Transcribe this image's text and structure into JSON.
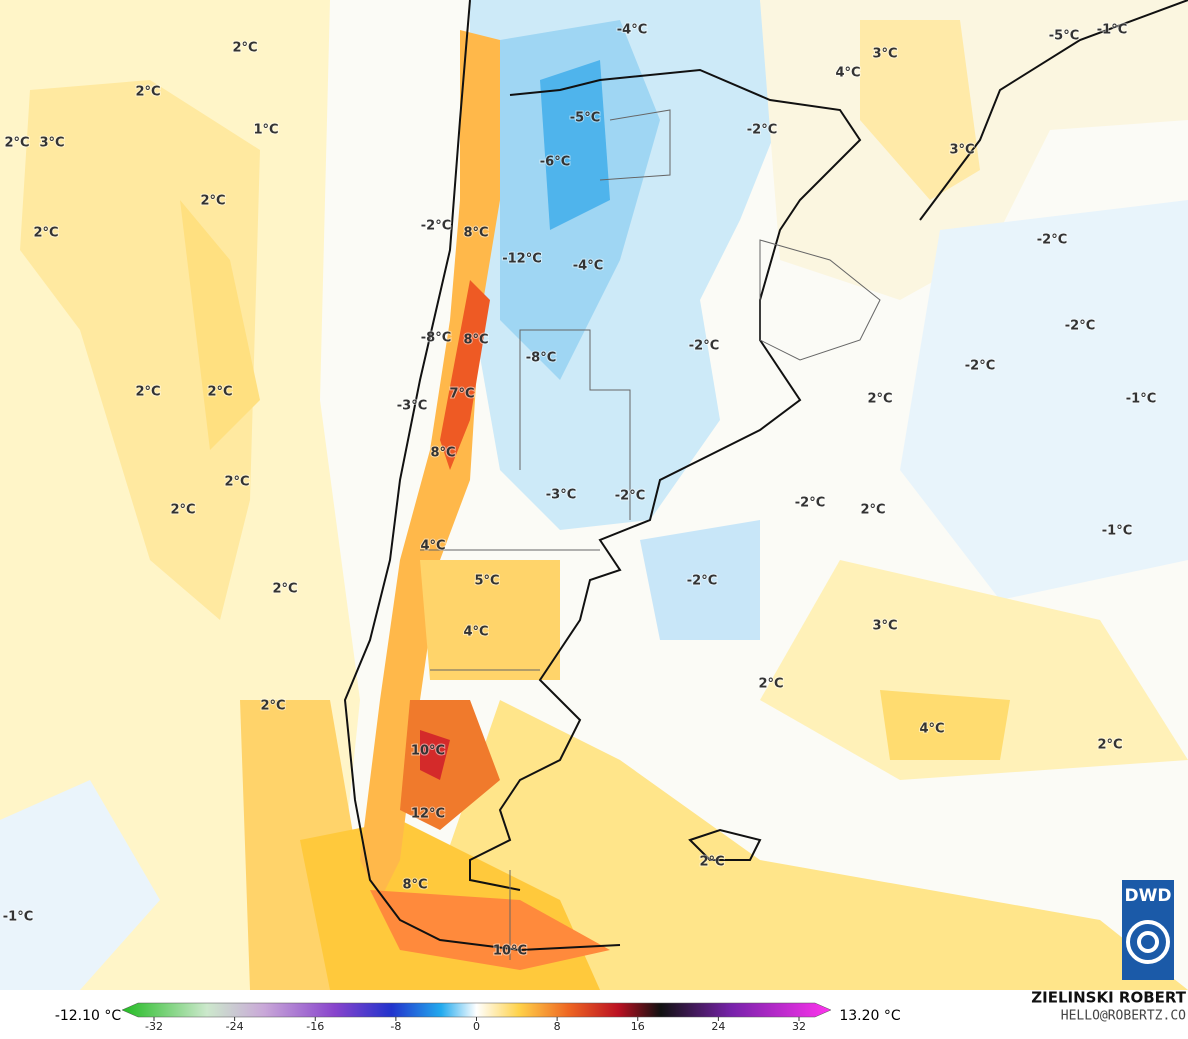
{
  "map": {
    "labels": [
      "2°C",
      "2°C",
      "1°C",
      "2°C",
      "3°C",
      "2°C",
      "2°C",
      "2°C",
      "2°C",
      "2°C",
      "2°C",
      "2°C",
      "2°C",
      "-1°C",
      "-4°C",
      "-5°C",
      "-6°C",
      "-2°C",
      "8°C",
      "-12°C",
      "-4°C",
      "-8°C",
      "8°C",
      "-8°C",
      "-3°C",
      "7°C",
      "8°C",
      "-3°C",
      "-2°C",
      "4°C",
      "5°C",
      "4°C",
      "10°C",
      "12°C",
      "8°C",
      "10°C",
      "-5°C",
      "-1°C",
      "3°C",
      "4°C",
      "-2°C",
      "3°C",
      "-2°C",
      "-2°C",
      "-2°C",
      "-2°C",
      "2°C",
      "-1°C",
      "-2°C",
      "2°C",
      "-1°C",
      "-2°C",
      "3°C",
      "2°C",
      "4°C",
      "2°C",
      "2°C"
    ]
  },
  "colorbar": {
    "min_label": "-12.10 °C",
    "max_label": "13.20 °C",
    "ticks": [
      -32,
      -24,
      -16,
      -8,
      0,
      8,
      16,
      24,
      32
    ]
  },
  "credits": {
    "author": "ZIELINSKI ROBERT",
    "contact": "HELLO@ROBERTZ.CO",
    "logo": "DWD"
  }
}
